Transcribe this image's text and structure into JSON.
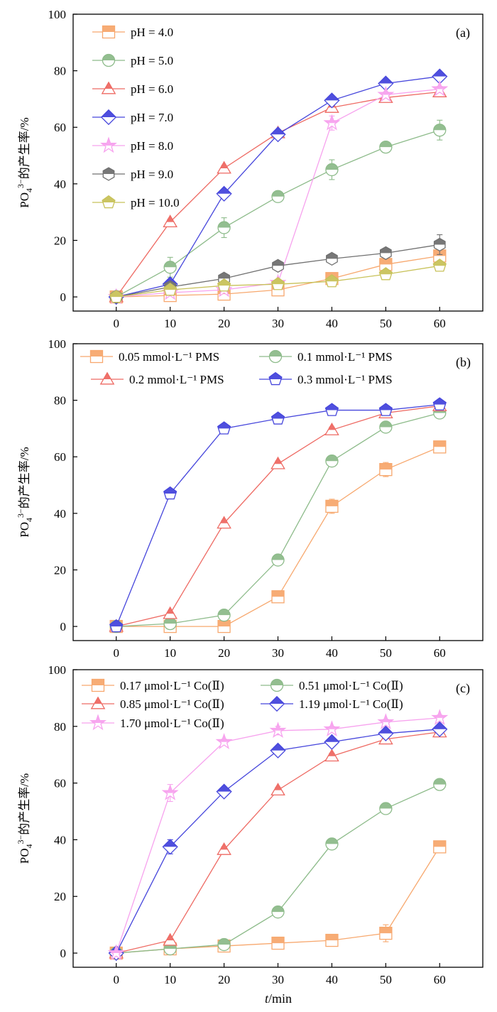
{
  "figure": {
    "xlabel_italic": "t",
    "xlabel_rest": "/min"
  },
  "chart_data": [
    {
      "type": "line",
      "panel_label": "(a)",
      "ylabel_base": "PO",
      "ylabel_sub": "4",
      "ylabel_sup": "3−",
      "ylabel_rest": "的产生率/%",
      "x": [
        0,
        10,
        20,
        30,
        40,
        50,
        60
      ],
      "xlim": [
        -8,
        68
      ],
      "ylim": [
        -5,
        100
      ],
      "xticks": [
        0,
        10,
        20,
        30,
        40,
        50,
        60
      ],
      "yticks": [
        0,
        20,
        40,
        60,
        80,
        100
      ],
      "legend_position": "top-left",
      "series": [
        {
          "name": "pH = 4.0",
          "color": "#f7a86e",
          "marker": "square",
          "values": [
            0,
            0.5,
            1,
            2.5,
            6.5,
            11.5,
            14.5
          ],
          "errors": [
            0,
            1,
            1,
            1.5,
            2,
            1.5,
            1.5
          ]
        },
        {
          "name": "pH = 5.0",
          "color": "#8dbb8a",
          "marker": "circle",
          "values": [
            0,
            10.5,
            24.5,
            35.5,
            45,
            53,
            59
          ],
          "errors": [
            0,
            3.5,
            3.5,
            1,
            3.5,
            1.5,
            3.5
          ]
        },
        {
          "name": "pH = 6.0",
          "color": "#ee6a63",
          "marker": "triangle",
          "values": [
            0,
            26.5,
            45.5,
            58,
            67,
            70.5,
            72.5
          ],
          "errors": [
            0,
            1,
            1,
            1,
            1,
            1,
            1
          ]
        },
        {
          "name": "pH = 7.0",
          "color": "#4646dc",
          "marker": "diamond",
          "values": [
            0,
            4.5,
            36.5,
            57.5,
            69.5,
            75.5,
            78
          ],
          "errors": [
            0,
            1,
            1,
            1,
            1,
            1,
            1
          ]
        },
        {
          "name": "pH = 8.0",
          "color": "#f7a2ee",
          "marker": "star",
          "values": [
            0,
            1.5,
            2.5,
            5,
            61.5,
            71.5,
            73.5
          ],
          "errors": [
            0,
            1,
            1,
            1,
            2.5,
            1,
            1
          ]
        },
        {
          "name": "pH = 9.0",
          "color": "#707070",
          "marker": "hexagon",
          "values": [
            0,
            3.5,
            6.5,
            11,
            13.5,
            15.5,
            18.5
          ],
          "errors": [
            0,
            1,
            1.5,
            1,
            1,
            1.5,
            3.5
          ]
        },
        {
          "name": "pH = 10.0",
          "color": "#c8c25a",
          "marker": "pentagon",
          "values": [
            0,
            2.5,
            4,
            4.5,
            5.5,
            8,
            11
          ],
          "errors": [
            0,
            1,
            1,
            1,
            1,
            1,
            1
          ]
        }
      ]
    },
    {
      "type": "line",
      "panel_label": "(b)",
      "ylabel_base": "PO",
      "ylabel_sub": "4",
      "ylabel_sup": "3−",
      "ylabel_rest": "的产生率/%",
      "x": [
        0,
        10,
        20,
        30,
        40,
        50,
        60
      ],
      "xlim": [
        -8,
        68
      ],
      "ylim": [
        -5,
        100
      ],
      "xticks": [
        0,
        10,
        20,
        30,
        40,
        50,
        60
      ],
      "yticks": [
        0,
        20,
        40,
        60,
        80,
        100
      ],
      "legend_position": "top",
      "series": [
        {
          "name": "0.05 mmol·L⁻¹ PMS",
          "color": "#f7a86e",
          "marker": "square",
          "values": [
            0,
            0,
            0,
            10.5,
            42.5,
            55.5,
            63.5
          ],
          "errors": [
            0,
            0.5,
            0.5,
            1.5,
            2.5,
            2.5,
            1
          ]
        },
        {
          "name": "0.1 mmol·L⁻¹ PMS",
          "color": "#8dbb8a",
          "marker": "circle",
          "values": [
            0,
            1,
            4,
            23.5,
            58.5,
            70.5,
            75.5
          ],
          "errors": [
            0,
            0.5,
            0.5,
            1,
            1,
            1,
            1
          ]
        },
        {
          "name": "0.2 mmol·L⁻¹  PMS",
          "color": "#ee6a63",
          "marker": "triangle",
          "values": [
            0,
            4.5,
            36.5,
            57.5,
            69.5,
            75.5,
            78
          ],
          "errors": [
            0,
            0.5,
            1,
            1,
            1,
            1,
            1
          ]
        },
        {
          "name": "0.3 mmol·L⁻¹  PMS",
          "color": "#4646dc",
          "marker": "pentagon",
          "values": [
            0,
            47,
            70,
            73.5,
            76.5,
            76.5,
            78.5
          ],
          "errors": [
            0,
            1,
            1,
            1,
            1,
            1,
            1
          ]
        }
      ]
    },
    {
      "type": "line",
      "panel_label": "(c)",
      "ylabel_base": "PO",
      "ylabel_sub": "4",
      "ylabel_sup": "3−",
      "ylabel_rest": "的产生率/%",
      "x": [
        0,
        10,
        20,
        30,
        40,
        50,
        60
      ],
      "xlim": [
        -8,
        68
      ],
      "ylim": [
        -5,
        100
      ],
      "xticks": [
        0,
        10,
        20,
        30,
        40,
        50,
        60
      ],
      "yticks": [
        0,
        20,
        40,
        60,
        80,
        100
      ],
      "legend_position": "top",
      "series": [
        {
          "name": "0.17 μmol·L⁻¹ Co(Ⅱ)",
          "color": "#f7a86e",
          "marker": "square",
          "values": [
            0,
            1.5,
            2.5,
            3.5,
            4.5,
            7,
            37.5
          ],
          "errors": [
            0,
            0.5,
            0.5,
            1,
            1,
            3,
            1
          ]
        },
        {
          "name": "0.51 μmol·L⁻¹ Co(Ⅱ)",
          "color": "#8dbb8a",
          "marker": "circle",
          "values": [
            0,
            1.5,
            3,
            14.5,
            38.5,
            51,
            59.5
          ],
          "errors": [
            0,
            0.5,
            0.5,
            1,
            1,
            1,
            1
          ]
        },
        {
          "name": "0.85 μmol·L⁻¹ Co(Ⅱ)",
          "color": "#ee6a63",
          "marker": "triangle",
          "values": [
            0,
            4.5,
            36.5,
            57.5,
            69.5,
            75.5,
            78
          ],
          "errors": [
            0,
            0.5,
            1,
            1,
            1,
            1,
            1
          ]
        },
        {
          "name": "1.19 μmol·L⁻¹ Co(Ⅱ)",
          "color": "#4646dc",
          "marker": "diamond",
          "values": [
            0,
            37.5,
            57,
            71.5,
            74.5,
            77.5,
            79
          ],
          "errors": [
            0,
            2.5,
            1,
            1,
            1,
            1,
            1
          ]
        },
        {
          "name": "1.70 μmol·L⁻¹ Co(Ⅱ)",
          "color": "#f7a2ee",
          "marker": "star",
          "values": [
            0,
            56.5,
            74.5,
            78.5,
            79,
            81.5,
            83
          ],
          "errors": [
            0,
            3,
            1,
            1.5,
            1,
            1,
            1
          ]
        }
      ]
    }
  ]
}
